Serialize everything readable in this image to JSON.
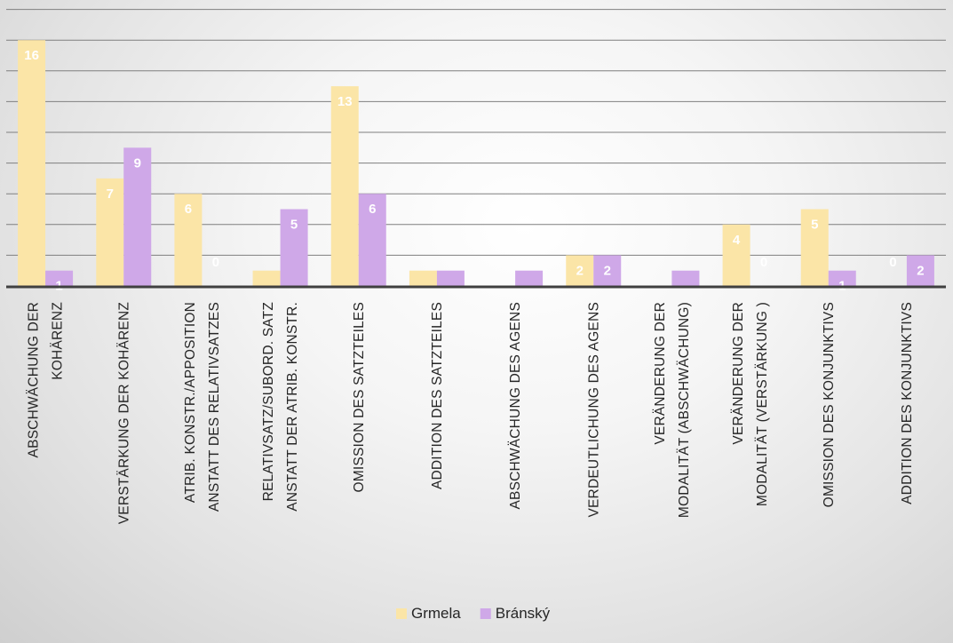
{
  "chart_data": {
    "type": "bar",
    "title": "",
    "xlabel": "",
    "ylabel": "",
    "ylim": [
      0,
      16
    ],
    "grid": true,
    "legend_position": "bottom",
    "categories": [
      [
        "ABSCHWÄCHUNG DER",
        "KOHÄRENZ"
      ],
      [
        "VERSTÄRKUNG DER KOHÄRENZ"
      ],
      [
        "ATRIB. KONSTR./APPOSITION",
        "ANSTATT DES RELATIVSATZES"
      ],
      [
        "RELATIVSATZ/SUBORD. SATZ",
        "ANSTATT DER ATRIB. KONSTR."
      ],
      [
        "OMISSION DES SATZTEILES"
      ],
      [
        "ADDITION DES SATZTEILES"
      ],
      [
        "ABSCHWÄCHUNG DES AGENS"
      ],
      [
        "VERDEUTLICHUNG DES AGENS"
      ],
      [
        "VERÄNDERUNG DER",
        "MODALITÄT (ABSCHWÄCHUNG)"
      ],
      [
        "VERÄNDERUNG DER",
        "MODALITÄT (VERSTÄRKUNG )"
      ],
      [
        "OMISSION DES KONJUNKTIVS"
      ],
      [
        "ADDITION DES KONJUNKTIVS"
      ]
    ],
    "series": [
      {
        "name": "Grmela",
        "color": "#fbe5a7",
        "values": [
          16,
          7,
          6,
          1,
          13,
          1,
          0,
          2,
          0,
          4,
          5,
          0
        ],
        "labels": [
          "16",
          "7",
          "6",
          "",
          "13",
          "",
          "",
          "2",
          "",
          "4",
          "5",
          "0"
        ]
      },
      {
        "name": "Bránský",
        "color": "#cfa8e8",
        "values": [
          1,
          9,
          0,
          5,
          6,
          1,
          1,
          2,
          1,
          0,
          1,
          2
        ],
        "labels": [
          "1",
          "9",
          "0",
          "5",
          "6",
          "",
          "",
          "2",
          "",
          "0",
          "1",
          "2"
        ]
      }
    ]
  }
}
